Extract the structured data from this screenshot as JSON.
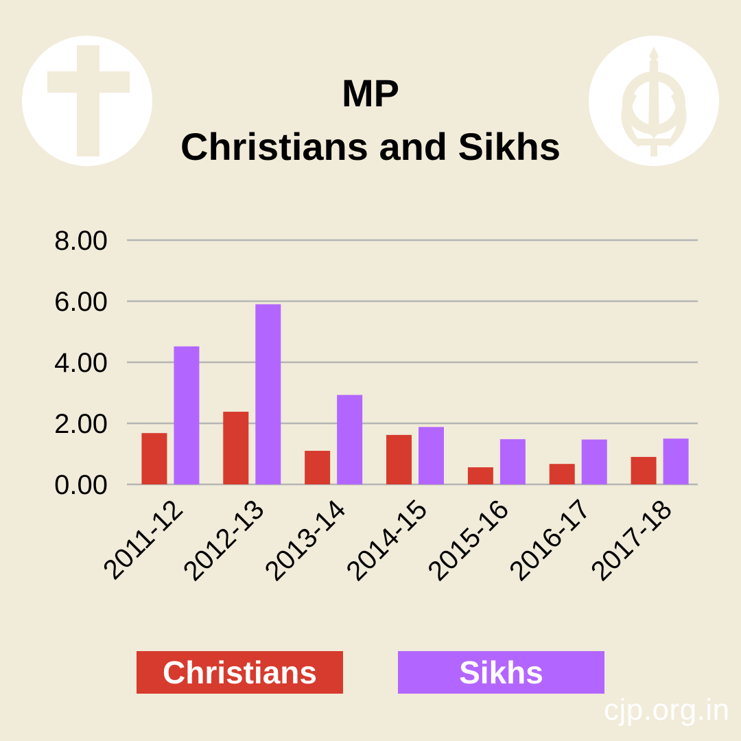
{
  "chart_data": {
    "type": "bar",
    "title_line1": "MP",
    "title_line2": "Christians and Sikhs",
    "categories": [
      "2011-12",
      "2012-13",
      "2013-14",
      "2014-15",
      "2015-16",
      "2016-17",
      "2017-18"
    ],
    "series": [
      {
        "name": "Christians",
        "color": "#d63b2e",
        "values": [
          1.68,
          2.38,
          1.1,
          1.62,
          0.56,
          0.67,
          0.9
        ]
      },
      {
        "name": "Sikhs",
        "color": "#b366ff",
        "values": [
          4.52,
          5.9,
          2.93,
          1.88,
          1.48,
          1.47,
          1.5
        ]
      }
    ],
    "y_ticks": [
      "0.00",
      "2.00",
      "4.00",
      "6.00",
      "8.00"
    ],
    "ylim": [
      0,
      8
    ],
    "grid": true,
    "legend_position": "bottom"
  },
  "icons": {
    "left_emblem": "cross-icon",
    "right_emblem": "khanda-icon"
  },
  "watermark": "cjp.org.in",
  "colors": {
    "background": "#f1ebd9",
    "gridline": "#b5b5b5",
    "emblem_fill": "#f1ebd9"
  }
}
